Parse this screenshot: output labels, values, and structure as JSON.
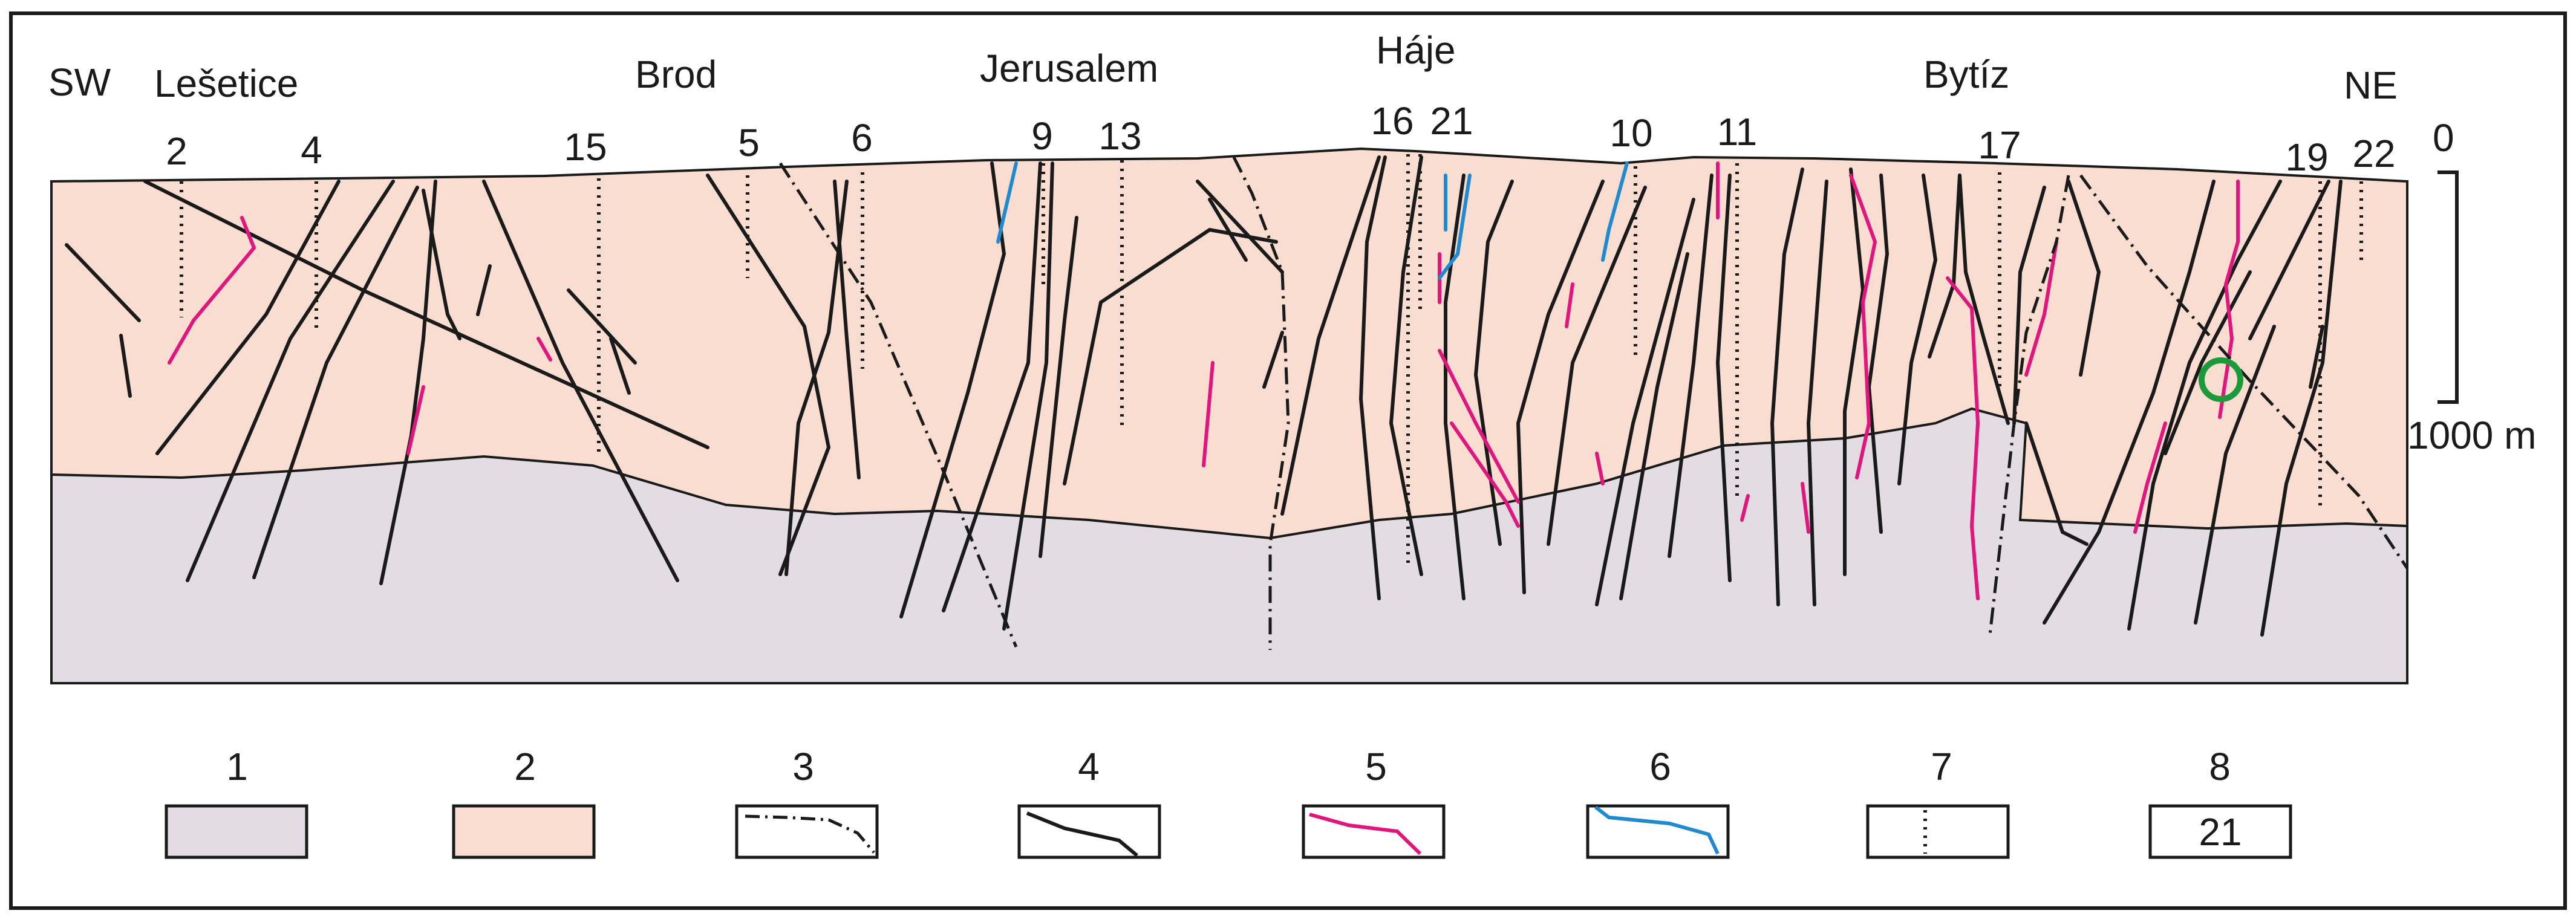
{
  "section": {
    "ends": {
      "left": "SW",
      "right": "NE"
    },
    "localities": [
      "Lešetice",
      "Brod",
      "Jerusalem",
      "Háje",
      "Bytíz"
    ],
    "shafts": [
      "2",
      "4",
      "15",
      "5",
      "6",
      "9",
      "13",
      "16",
      "21",
      "10",
      "11",
      "17",
      "19",
      "22"
    ],
    "scale": {
      "top": "0",
      "bottom": "1000 m"
    }
  },
  "legend": [
    {
      "number": "1",
      "swatch": "lower-unit-fill",
      "color": "#e3dce3"
    },
    {
      "number": "2",
      "swatch": "upper-unit-fill",
      "color": "#f9ddd1"
    },
    {
      "number": "3",
      "swatch": "dash-dot-line",
      "color": "#1a1a1a"
    },
    {
      "number": "4",
      "swatch": "black-line",
      "color": "#1a1a1a"
    },
    {
      "number": "5",
      "swatch": "magenta-line",
      "color": "#e0157d"
    },
    {
      "number": "6",
      "swatch": "blue-line",
      "color": "#1f8ad0"
    },
    {
      "number": "7",
      "swatch": "dotted-line",
      "color": "#1a1a1a"
    },
    {
      "number": "8",
      "swatch": "label-box",
      "text": "21"
    }
  ],
  "colors": {
    "lower_unit": "#e3dce3",
    "upper_unit": "#f9ddd1",
    "structure_black": "#1a1a1a",
    "structure_magenta": "#e0157d",
    "structure_blue": "#1f8ad0",
    "marker_green": "#1a9a3a"
  }
}
